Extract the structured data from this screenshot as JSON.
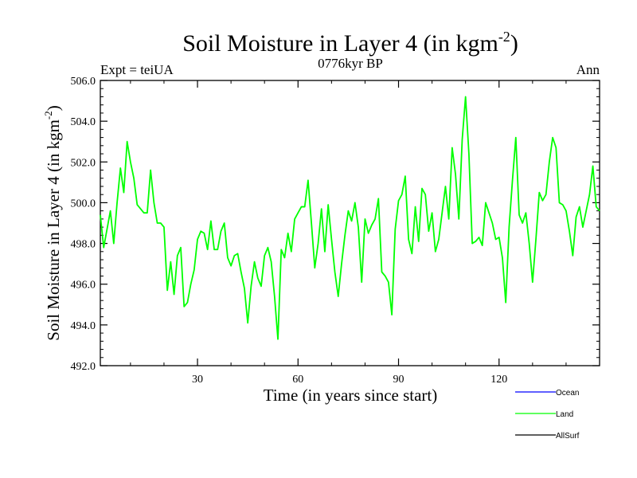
{
  "chart_data": {
    "type": "line",
    "title": "Soil Moisture in Layer 4 (in kgm",
    "title_sup": "-2",
    "title_end": ")",
    "subtitle_left": "Expt = teiUA",
    "subtitle_center": "0776kyr BP",
    "subtitle_right": "Ann",
    "xlabel": "Time (in years since start)",
    "ylabel": "Soil Moisture in Layer 4 (in kgm",
    "ylabel_sup": "-2",
    "ylabel_end": ")",
    "xlim": [
      1,
      150
    ],
    "ylim": [
      492.0,
      506.0
    ],
    "xticks": [
      30,
      60,
      90,
      120
    ],
    "xtick_labels": [
      "30",
      "60",
      "90",
      "120"
    ],
    "yticks": [
      492.0,
      494.0,
      496.0,
      498.0,
      500.0,
      502.0,
      504.0,
      506.0
    ],
    "ytick_labels": [
      "492.0",
      "494.0",
      "496.0",
      "498.0",
      "500.0",
      "502.0",
      "504.0",
      "506.0"
    ],
    "legend": [
      {
        "name": "Ocean",
        "color": "#0000ff"
      },
      {
        "name": "Land",
        "color": "#00ff00"
      },
      {
        "name": "AllSurf",
        "color": "#000000"
      }
    ],
    "series": [
      {
        "name": "Land",
        "color": "#00ff00",
        "x": [
          1,
          2,
          3,
          4,
          5,
          6,
          7,
          8,
          9,
          10,
          11,
          12,
          13,
          14,
          15,
          16,
          17,
          18,
          19,
          20,
          21,
          22,
          23,
          24,
          25,
          26,
          27,
          28,
          29,
          30,
          31,
          32,
          33,
          34,
          35,
          36,
          37,
          38,
          39,
          40,
          41,
          42,
          43,
          44,
          45,
          46,
          47,
          48,
          49,
          50,
          51,
          52,
          53,
          54,
          55,
          56,
          57,
          58,
          59,
          60,
          61,
          62,
          63,
          64,
          65,
          66,
          67,
          68,
          69,
          70,
          71,
          72,
          73,
          74,
          75,
          76,
          77,
          78,
          79,
          80,
          81,
          82,
          83,
          84,
          85,
          86,
          87,
          88,
          89,
          90,
          91,
          92,
          93,
          94,
          95,
          96,
          97,
          98,
          99,
          100,
          101,
          102,
          103,
          104,
          105,
          106,
          107,
          108,
          109,
          110,
          111,
          112,
          113,
          114,
          115,
          116,
          117,
          118,
          119,
          120,
          121,
          122,
          123,
          124,
          125,
          126,
          127,
          128,
          129,
          130,
          131,
          132,
          133,
          134,
          135,
          136,
          137,
          138,
          139,
          140,
          141,
          142,
          143,
          144,
          145,
          146,
          147,
          148,
          149,
          150
        ],
        "values": [
          499.4,
          497.8,
          498.7,
          499.6,
          498.0,
          500.0,
          501.7,
          500.5,
          503.0,
          502.0,
          501.2,
          499.9,
          499.7,
          499.5,
          499.5,
          501.6,
          500.0,
          499.0,
          499.0,
          498.8,
          495.7,
          497.1,
          495.5,
          497.4,
          497.8,
          494.9,
          495.1,
          496.0,
          496.7,
          498.2,
          498.6,
          498.5,
          497.7,
          499.1,
          497.7,
          497.7,
          498.6,
          499.0,
          497.3,
          496.9,
          497.4,
          497.5,
          496.6,
          495.8,
          494.1,
          495.9,
          497.1,
          496.3,
          495.9,
          497.4,
          497.8,
          497.1,
          495.4,
          493.3,
          497.7,
          497.3,
          498.5,
          497.6,
          499.2,
          499.5,
          499.8,
          499.8,
          501.1,
          499.0,
          496.8,
          498.0,
          499.7,
          497.6,
          499.9,
          498.2,
          496.6,
          495.4,
          497.0,
          498.4,
          499.6,
          499.1,
          500.0,
          498.8,
          496.1,
          499.2,
          498.5,
          498.9,
          499.2,
          500.2,
          496.6,
          496.4,
          496.1,
          494.5,
          498.7,
          500.1,
          500.4,
          501.3,
          498.2,
          497.5,
          499.8,
          498.1,
          500.7,
          500.4,
          498.6,
          499.5,
          497.6,
          498.2,
          499.5,
          500.8,
          499.2,
          502.7,
          501.4,
          499.2,
          503.1,
          505.2,
          502.4,
          498.0,
          498.1,
          498.3,
          497.9,
          500.0,
          499.5,
          499.0,
          498.2,
          498.3,
          497.3,
          495.1,
          498.8,
          501.1,
          503.2,
          499.4,
          499.0,
          499.5,
          498.0,
          496.1,
          498.2,
          500.5,
          500.1,
          500.4,
          502.0,
          503.2,
          502.7,
          500.0,
          499.9,
          499.6,
          498.6,
          497.4,
          499.3,
          499.8,
          498.8,
          499.6,
          500.4,
          501.8,
          499.8,
          499.6
        ]
      },
      {
        "name": "Ocean",
        "color": "#0000ff",
        "x": [],
        "values": []
      },
      {
        "name": "AllSurf",
        "color": "#000000",
        "x": [],
        "values": []
      }
    ]
  }
}
